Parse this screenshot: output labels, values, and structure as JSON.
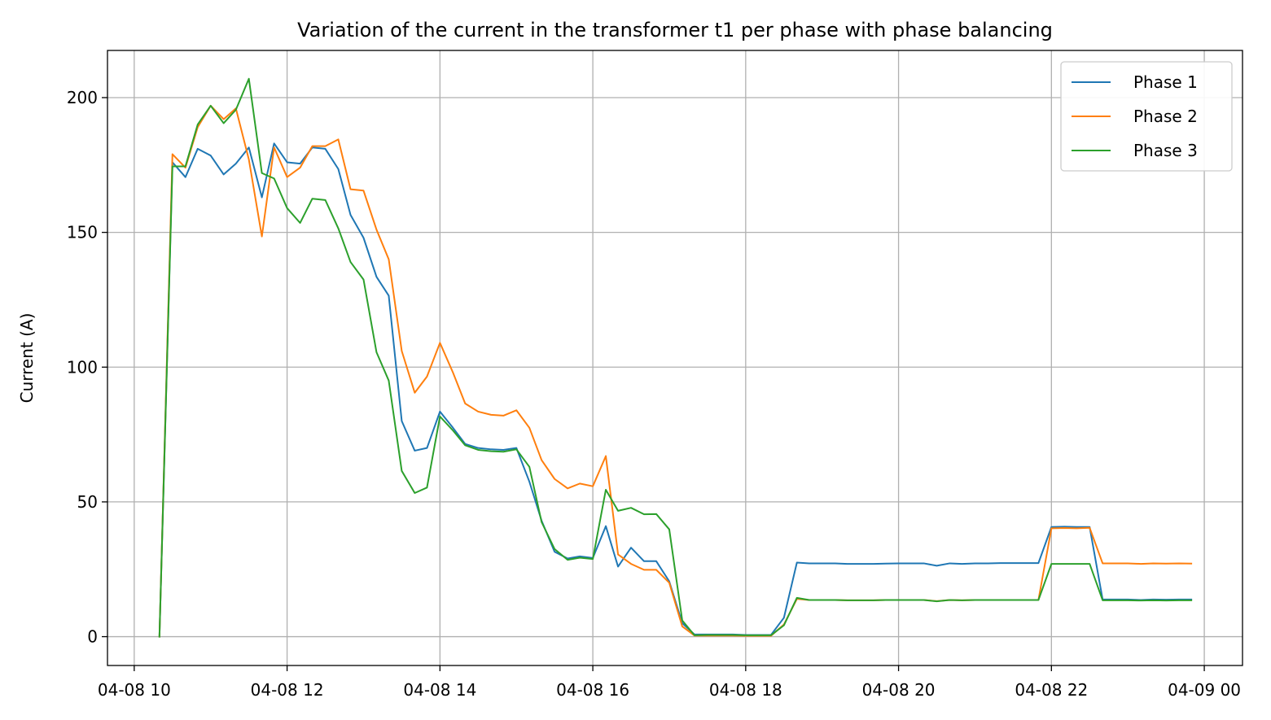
{
  "chart_data": {
    "type": "line",
    "title": "Variation of the current in the transformer t1 per phase with phase balancing",
    "xlabel": "",
    "ylabel": "Current (A)",
    "x_unit": "hours since 04-08 00:00",
    "xlim": [
      9.65,
      24.5
    ],
    "ylim": [
      -10.7,
      217.5
    ],
    "grid": true,
    "legend_position": "top-right",
    "x_ticks": [
      {
        "value": 10,
        "label": "04-08 10"
      },
      {
        "value": 12,
        "label": "04-08 12"
      },
      {
        "value": 14,
        "label": "04-08 14"
      },
      {
        "value": 16,
        "label": "04-08 16"
      },
      {
        "value": 18,
        "label": "04-08 18"
      },
      {
        "value": 20,
        "label": "04-08 20"
      },
      {
        "value": 22,
        "label": "04-08 22"
      },
      {
        "value": 24,
        "label": "04-09 00"
      }
    ],
    "y_ticks": [
      {
        "value": 0,
        "label": "0"
      },
      {
        "value": 50,
        "label": "50"
      },
      {
        "value": 100,
        "label": "100"
      },
      {
        "value": 150,
        "label": "150"
      },
      {
        "value": 200,
        "label": "200"
      }
    ],
    "series": [
      {
        "name": "Phase 1",
        "color": "#1f77b4",
        "points": [
          [
            10.33,
            0
          ],
          [
            10.5,
            176
          ],
          [
            10.67,
            170.5
          ],
          [
            10.83,
            181
          ],
          [
            11.0,
            178.5
          ],
          [
            11.17,
            171.5
          ],
          [
            11.33,
            175.5
          ],
          [
            11.5,
            181.5
          ],
          [
            11.67,
            163
          ],
          [
            11.83,
            183
          ],
          [
            12.0,
            176
          ],
          [
            12.17,
            175.5
          ],
          [
            12.33,
            181.5
          ],
          [
            12.5,
            181
          ],
          [
            12.67,
            173.5
          ],
          [
            12.83,
            156.5
          ],
          [
            13.0,
            148
          ],
          [
            13.17,
            133.5
          ],
          [
            13.33,
            126.5
          ],
          [
            13.5,
            80
          ],
          [
            13.67,
            69
          ],
          [
            13.83,
            70
          ],
          [
            14.0,
            83.5
          ],
          [
            14.17,
            77.5
          ],
          [
            14.33,
            71.5
          ],
          [
            14.5,
            70
          ],
          [
            14.67,
            69.5
          ],
          [
            14.83,
            69.3
          ],
          [
            15.0,
            70
          ],
          [
            15.17,
            57.5
          ],
          [
            15.33,
            43
          ],
          [
            15.5,
            31.5
          ],
          [
            15.67,
            29
          ],
          [
            15.83,
            29.8
          ],
          [
            16.0,
            29.2
          ],
          [
            16.17,
            41
          ],
          [
            16.33,
            26
          ],
          [
            16.5,
            33
          ],
          [
            16.67,
            28
          ],
          [
            16.83,
            28
          ],
          [
            17.0,
            20.5
          ],
          [
            17.17,
            5
          ],
          [
            17.33,
            0.8
          ],
          [
            17.5,
            0.8
          ],
          [
            17.67,
            0.8
          ],
          [
            17.83,
            0.8
          ],
          [
            18.0,
            0.6
          ],
          [
            18.17,
            0.6
          ],
          [
            18.33,
            0.6
          ],
          [
            18.5,
            7
          ],
          [
            18.67,
            27.5
          ],
          [
            18.83,
            27.2
          ],
          [
            19.0,
            27.2
          ],
          [
            19.17,
            27.2
          ],
          [
            19.33,
            27
          ],
          [
            19.5,
            27
          ],
          [
            19.67,
            27
          ],
          [
            19.83,
            27.1
          ],
          [
            20.0,
            27.2
          ],
          [
            20.17,
            27.2
          ],
          [
            20.33,
            27.2
          ],
          [
            20.5,
            26.3
          ],
          [
            20.67,
            27.2
          ],
          [
            20.83,
            27
          ],
          [
            21.0,
            27.2
          ],
          [
            21.17,
            27.2
          ],
          [
            21.33,
            27.3
          ],
          [
            21.5,
            27.3
          ],
          [
            21.67,
            27.3
          ],
          [
            21.83,
            27.3
          ],
          [
            22.0,
            40.7
          ],
          [
            22.17,
            40.8
          ],
          [
            22.33,
            40.7
          ],
          [
            22.5,
            40.7
          ],
          [
            22.67,
            13.8
          ],
          [
            22.83,
            13.8
          ],
          [
            23.0,
            13.8
          ],
          [
            23.17,
            13.6
          ],
          [
            23.33,
            13.8
          ],
          [
            23.5,
            13.7
          ],
          [
            23.67,
            13.8
          ],
          [
            23.83,
            13.8
          ]
        ]
      },
      {
        "name": "Phase 2",
        "color": "#ff7f0e",
        "points": [
          [
            10.33,
            0
          ],
          [
            10.5,
            179
          ],
          [
            10.67,
            174
          ],
          [
            10.83,
            189
          ],
          [
            11.0,
            197
          ],
          [
            11.17,
            192
          ],
          [
            11.33,
            196
          ],
          [
            11.5,
            177
          ],
          [
            11.67,
            148.5
          ],
          [
            11.83,
            181.5
          ],
          [
            12.0,
            170.5
          ],
          [
            12.17,
            174
          ],
          [
            12.33,
            182
          ],
          [
            12.5,
            182
          ],
          [
            12.67,
            184.5
          ],
          [
            12.83,
            166
          ],
          [
            13.0,
            165.5
          ],
          [
            13.17,
            151
          ],
          [
            13.33,
            140
          ],
          [
            13.5,
            106
          ],
          [
            13.67,
            90.5
          ],
          [
            13.83,
            96.5
          ],
          [
            14.0,
            109
          ],
          [
            14.17,
            98
          ],
          [
            14.33,
            86.5
          ],
          [
            14.5,
            83.5
          ],
          [
            14.67,
            82.3
          ],
          [
            14.83,
            82
          ],
          [
            15.0,
            84
          ],
          [
            15.17,
            77.5
          ],
          [
            15.33,
            65.5
          ],
          [
            15.5,
            58.5
          ],
          [
            15.67,
            55
          ],
          [
            15.83,
            56.8
          ],
          [
            16.0,
            55.8
          ],
          [
            16.17,
            67
          ],
          [
            16.33,
            30.5
          ],
          [
            16.5,
            27
          ],
          [
            16.67,
            24.8
          ],
          [
            16.83,
            24.8
          ],
          [
            17.0,
            20
          ],
          [
            17.17,
            3.8
          ],
          [
            17.33,
            0.4
          ],
          [
            17.5,
            0.4
          ],
          [
            17.67,
            0.4
          ],
          [
            17.83,
            0.4
          ],
          [
            18.0,
            0.3
          ],
          [
            18.17,
            0.3
          ],
          [
            18.33,
            0.3
          ],
          [
            18.5,
            4.5
          ],
          [
            18.67,
            14
          ],
          [
            18.83,
            13.6
          ],
          [
            19.0,
            13.6
          ],
          [
            19.17,
            13.6
          ],
          [
            19.33,
            13.5
          ],
          [
            19.5,
            13.5
          ],
          [
            19.67,
            13.5
          ],
          [
            19.83,
            13.6
          ],
          [
            20.0,
            13.6
          ],
          [
            20.17,
            13.6
          ],
          [
            20.33,
            13.6
          ],
          [
            20.5,
            13.2
          ],
          [
            20.67,
            13.6
          ],
          [
            20.83,
            13.5
          ],
          [
            21.0,
            13.6
          ],
          [
            21.17,
            13.6
          ],
          [
            21.33,
            13.6
          ],
          [
            21.5,
            13.6
          ],
          [
            21.67,
            13.6
          ],
          [
            21.83,
            13.6
          ],
          [
            22.0,
            40.2
          ],
          [
            22.17,
            40.3
          ],
          [
            22.33,
            40.2
          ],
          [
            22.5,
            40.4
          ],
          [
            22.67,
            27.2
          ],
          [
            22.83,
            27.2
          ],
          [
            23.0,
            27.2
          ],
          [
            23.17,
            27
          ],
          [
            23.33,
            27.2
          ],
          [
            23.5,
            27.1
          ],
          [
            23.67,
            27.2
          ],
          [
            23.83,
            27.1
          ]
        ]
      },
      {
        "name": "Phase 3",
        "color": "#2ca02c",
        "points": [
          [
            10.33,
            0
          ],
          [
            10.5,
            174.5
          ],
          [
            10.67,
            174.5
          ],
          [
            10.83,
            190
          ],
          [
            11.0,
            197
          ],
          [
            11.17,
            190.5
          ],
          [
            11.33,
            195.5
          ],
          [
            11.5,
            207
          ],
          [
            11.67,
            172
          ],
          [
            11.83,
            170
          ],
          [
            12.0,
            159
          ],
          [
            12.17,
            153.5
          ],
          [
            12.33,
            162.5
          ],
          [
            12.5,
            162
          ],
          [
            12.67,
            151.5
          ],
          [
            12.83,
            139
          ],
          [
            13.0,
            132.5
          ],
          [
            13.17,
            105.5
          ],
          [
            13.33,
            95
          ],
          [
            13.5,
            61.5
          ],
          [
            13.67,
            53.3
          ],
          [
            13.83,
            55.3
          ],
          [
            14.0,
            81.7
          ],
          [
            14.17,
            76.5
          ],
          [
            14.33,
            71
          ],
          [
            14.5,
            69.3
          ],
          [
            14.67,
            68.8
          ],
          [
            14.83,
            68.6
          ],
          [
            15.0,
            69.5
          ],
          [
            15.17,
            63
          ],
          [
            15.33,
            42.5
          ],
          [
            15.5,
            32.5
          ],
          [
            15.67,
            28.5
          ],
          [
            15.83,
            29.3
          ],
          [
            16.0,
            28.8
          ],
          [
            16.17,
            54.5
          ],
          [
            16.33,
            46.7
          ],
          [
            16.5,
            47.8
          ],
          [
            16.67,
            45.4
          ],
          [
            16.83,
            45.5
          ],
          [
            17.0,
            39.8
          ],
          [
            17.17,
            6
          ],
          [
            17.33,
            0.5
          ],
          [
            17.5,
            0.6
          ],
          [
            17.67,
            0.6
          ],
          [
            17.83,
            0.6
          ],
          [
            18.0,
            0.5
          ],
          [
            18.17,
            0.5
          ],
          [
            18.33,
            0.5
          ],
          [
            18.5,
            4.2
          ],
          [
            18.67,
            14.4
          ],
          [
            18.83,
            13.6
          ],
          [
            19.0,
            13.6
          ],
          [
            19.17,
            13.6
          ],
          [
            19.33,
            13.5
          ],
          [
            19.5,
            13.5
          ],
          [
            19.67,
            13.5
          ],
          [
            19.83,
            13.6
          ],
          [
            20.0,
            13.6
          ],
          [
            20.17,
            13.6
          ],
          [
            20.33,
            13.6
          ],
          [
            20.5,
            13.1
          ],
          [
            20.67,
            13.6
          ],
          [
            20.83,
            13.5
          ],
          [
            21.0,
            13.6
          ],
          [
            21.17,
            13.6
          ],
          [
            21.33,
            13.6
          ],
          [
            21.5,
            13.6
          ],
          [
            21.67,
            13.6
          ],
          [
            21.83,
            13.6
          ],
          [
            22.0,
            27
          ],
          [
            22.17,
            27
          ],
          [
            22.33,
            27
          ],
          [
            22.5,
            27
          ],
          [
            22.67,
            13.5
          ],
          [
            22.83,
            13.5
          ],
          [
            23.0,
            13.5
          ],
          [
            23.17,
            13.4
          ],
          [
            23.33,
            13.5
          ],
          [
            23.5,
            13.4
          ],
          [
            23.67,
            13.5
          ],
          [
            23.83,
            13.5
          ]
        ]
      }
    ]
  }
}
